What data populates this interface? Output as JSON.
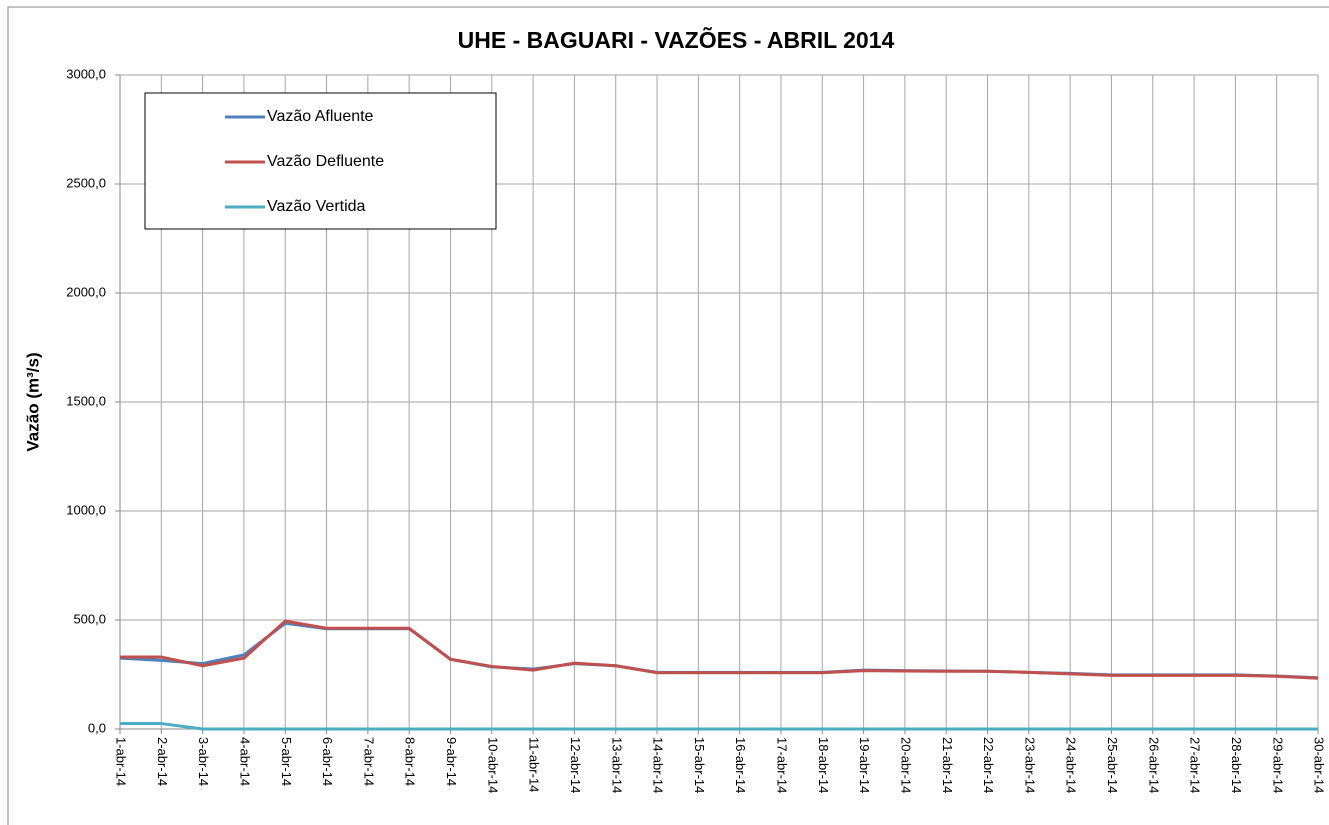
{
  "chart_data": {
    "type": "line",
    "title": "UHE - BAGUARI - VAZÕES - ABRIL 2014",
    "y_label": "Vazão (m³/s)",
    "categories": [
      "1-abr-14",
      "2-abr-14",
      "3-abr-14",
      "4-abr-14",
      "5-abr-14",
      "6-abr-14",
      "7-abr-14",
      "8-abr-14",
      "9-abr-14",
      "10-abr-14",
      "11-abr-14",
      "12-abr-14",
      "13-abr-14",
      "14-abr-14",
      "15-abr-14",
      "16-abr-14",
      "17-abr-14",
      "18-abr-14",
      "19-abr-14",
      "20-abr-14",
      "21-abr-14",
      "22-abr-14",
      "23-abr-14",
      "24-abr-14",
      "25-abr-14",
      "26-abr-14",
      "27-abr-14",
      "28-abr-14",
      "29-abr-14",
      "30-abr-14"
    ],
    "series": [
      {
        "name": "Vazão Afluente",
        "color": "#4f81bd",
        "values": [
          325,
          315,
          300,
          340,
          485,
          460,
          460,
          460,
          320,
          285,
          275,
          300,
          290,
          260,
          260,
          260,
          260,
          260,
          270,
          268,
          266,
          265,
          260,
          255,
          248,
          248,
          248,
          248,
          243,
          235
        ]
      },
      {
        "name": "Vazão Defluente",
        "color": "#c0504d",
        "values": [
          330,
          330,
          290,
          325,
          495,
          462,
          462,
          462,
          320,
          287,
          270,
          302,
          290,
          258,
          258,
          258,
          258,
          258,
          268,
          266,
          265,
          265,
          260,
          253,
          246,
          246,
          246,
          246,
          242,
          233
        ]
      },
      {
        "name": "Vazão Vertida",
        "color": "#4bacc6",
        "values": [
          25,
          25,
          0,
          0,
          0,
          0,
          0,
          0,
          0,
          0,
          0,
          0,
          0,
          0,
          0,
          0,
          0,
          0,
          0,
          0,
          0,
          0,
          0,
          0,
          0,
          0,
          0,
          0,
          0,
          0
        ]
      }
    ],
    "ylim": [
      0,
      3000
    ],
    "yticks": [
      {
        "value": 0,
        "label": "0,0"
      },
      {
        "value": 500,
        "label": "500,0"
      },
      {
        "value": 1000,
        "label": "1000,0"
      },
      {
        "value": 1500,
        "label": "1500,0"
      },
      {
        "value": 2000,
        "label": "2000,0"
      },
      {
        "value": 2500,
        "label": "2500,0"
      },
      {
        "value": 3000,
        "label": "3000,0"
      }
    ],
    "grid": true
  }
}
